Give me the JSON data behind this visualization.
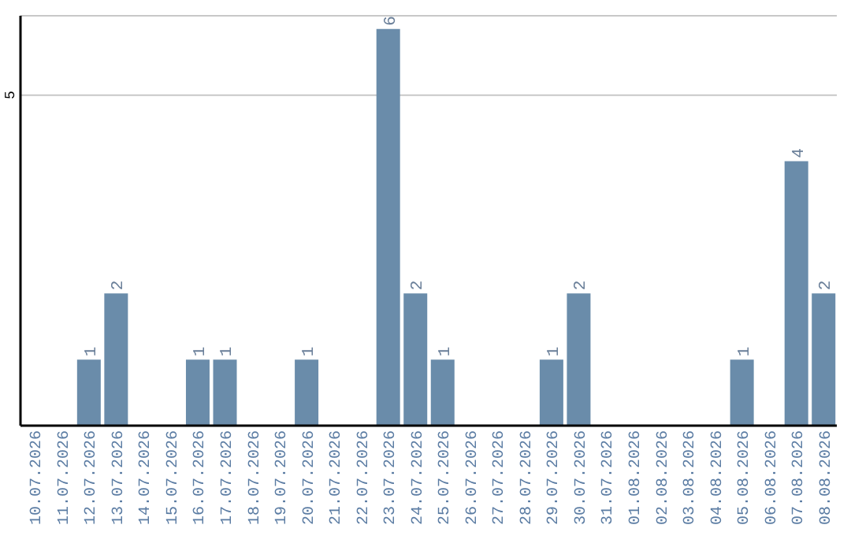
{
  "chart_data": {
    "type": "bar",
    "categories": [
      "10.07.2026",
      "11.07.2026",
      "12.07.2026",
      "13.07.2026",
      "14.07.2026",
      "15.07.2026",
      "16.07.2026",
      "17.07.2026",
      "18.07.2026",
      "19.07.2026",
      "20.07.2026",
      "21.07.2026",
      "22.07.2026",
      "23.07.2026",
      "24.07.2026",
      "25.07.2026",
      "26.07.2026",
      "27.07.2026",
      "28.07.2026",
      "29.07.2026",
      "30.07.2026",
      "31.07.2026",
      "01.08.2026",
      "02.08.2026",
      "03.08.2026",
      "04.08.2026",
      "05.08.2026",
      "06.08.2026",
      "07.08.2026",
      "08.08.2026"
    ],
    "values": [
      0,
      0,
      1,
      2,
      0,
      0,
      1,
      1,
      0,
      0,
      1,
      0,
      0,
      6,
      2,
      1,
      0,
      0,
      0,
      1,
      2,
      0,
      0,
      0,
      0,
      0,
      1,
      0,
      4,
      2
    ],
    "value_labels": [
      null,
      null,
      "1",
      "2",
      null,
      null,
      "1",
      "1",
      null,
      null,
      "1",
      null,
      null,
      "6",
      "2",
      "1",
      null,
      null,
      null,
      "1",
      "2",
      null,
      null,
      null,
      null,
      null,
      "1",
      null,
      "4",
      "2"
    ],
    "color": "#6a8caa",
    "ylim": [
      0,
      6.2
    ],
    "yticks": [
      5
    ],
    "grid": "y",
    "legend": false
  }
}
